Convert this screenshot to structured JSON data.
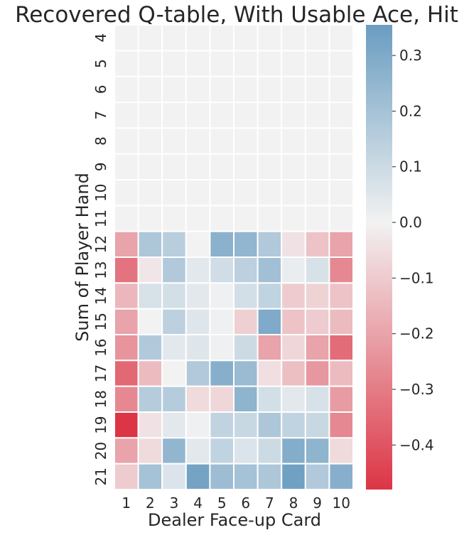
{
  "chart_data": {
    "type": "heatmap",
    "title": "Recovered Q-table, With Usable Ace, Hit",
    "xlabel": "Dealer Face-up Card",
    "ylabel": "Sum of Player Hand",
    "x_categories": [
      "1",
      "2",
      "3",
      "4",
      "5",
      "6",
      "7",
      "8",
      "9",
      "10"
    ],
    "y_categories": [
      "4",
      "5",
      "6",
      "7",
      "8",
      "9",
      "10",
      "11",
      "12",
      "13",
      "14",
      "15",
      "16",
      "17",
      "18",
      "19",
      "20",
      "21"
    ],
    "values": [
      [
        0,
        0,
        0,
        0,
        0,
        0,
        0,
        0,
        0,
        0
      ],
      [
        0,
        0,
        0,
        0,
        0,
        0,
        0,
        0,
        0,
        0
      ],
      [
        0,
        0,
        0,
        0,
        0,
        0,
        0,
        0,
        0,
        0
      ],
      [
        0,
        0,
        0,
        0,
        0,
        0,
        0,
        0,
        0,
        0
      ],
      [
        0,
        0,
        0,
        0,
        0,
        0,
        0,
        0,
        0,
        0
      ],
      [
        0,
        0,
        0,
        0,
        0,
        0,
        0,
        0,
        0,
        0
      ],
      [
        0,
        0,
        0,
        0,
        0,
        0,
        0,
        0,
        0,
        0
      ],
      [
        0,
        0,
        0,
        0,
        0,
        0,
        0,
        0,
        0,
        0
      ],
      [
        -0.2,
        0.18,
        0.15,
        0.0,
        0.27,
        0.25,
        0.17,
        -0.04,
        -0.12,
        -0.2
      ],
      [
        -0.32,
        -0.03,
        0.17,
        0.04,
        0.09,
        0.14,
        0.21,
        0.02,
        0.07,
        -0.27
      ],
      [
        -0.15,
        0.07,
        0.08,
        0.04,
        0.01,
        0.08,
        0.13,
        -0.1,
        -0.08,
        -0.12
      ],
      [
        -0.2,
        0.0,
        0.14,
        0.05,
        0.01,
        -0.09,
        0.3,
        -0.12,
        -0.1,
        -0.14
      ],
      [
        -0.24,
        0.17,
        0.04,
        0.05,
        0.01,
        0.1,
        -0.2,
        -0.07,
        -0.2,
        -0.34
      ],
      [
        -0.35,
        -0.14,
        0.0,
        0.17,
        0.28,
        0.23,
        -0.05,
        -0.13,
        -0.23,
        -0.14
      ],
      [
        -0.27,
        0.16,
        0.16,
        -0.06,
        -0.07,
        0.26,
        0.08,
        0.04,
        0.07,
        -0.22
      ],
      [
        -0.48,
        -0.04,
        0.04,
        0.01,
        0.13,
        0.11,
        0.18,
        0.13,
        0.11,
        -0.27
      ],
      [
        -0.2,
        -0.06,
        0.25,
        0.04,
        0.13,
        0.06,
        0.1,
        0.29,
        0.26,
        -0.06
      ],
      [
        -0.1,
        0.2,
        0.06,
        0.33,
        0.22,
        0.2,
        0.18,
        0.34,
        0.17,
        0.28
      ]
    ],
    "colorbar": {
      "vmin": -0.48,
      "vmax": 0.355,
      "ticks": [
        0.3,
        0.2,
        0.1,
        0.0,
        -0.1,
        -0.2,
        -0.3,
        -0.4
      ],
      "tick_labels": [
        "0.3",
        "0.2",
        "0.1",
        "0.0",
        "−0.1",
        "−0.2",
        "−0.3",
        "−0.4"
      ],
      "low_color": "#dc3545",
      "mid_color": "#f2f2f2",
      "high_color": "#6a9dc1"
    },
    "grid_line_color": "#ffffff"
  }
}
